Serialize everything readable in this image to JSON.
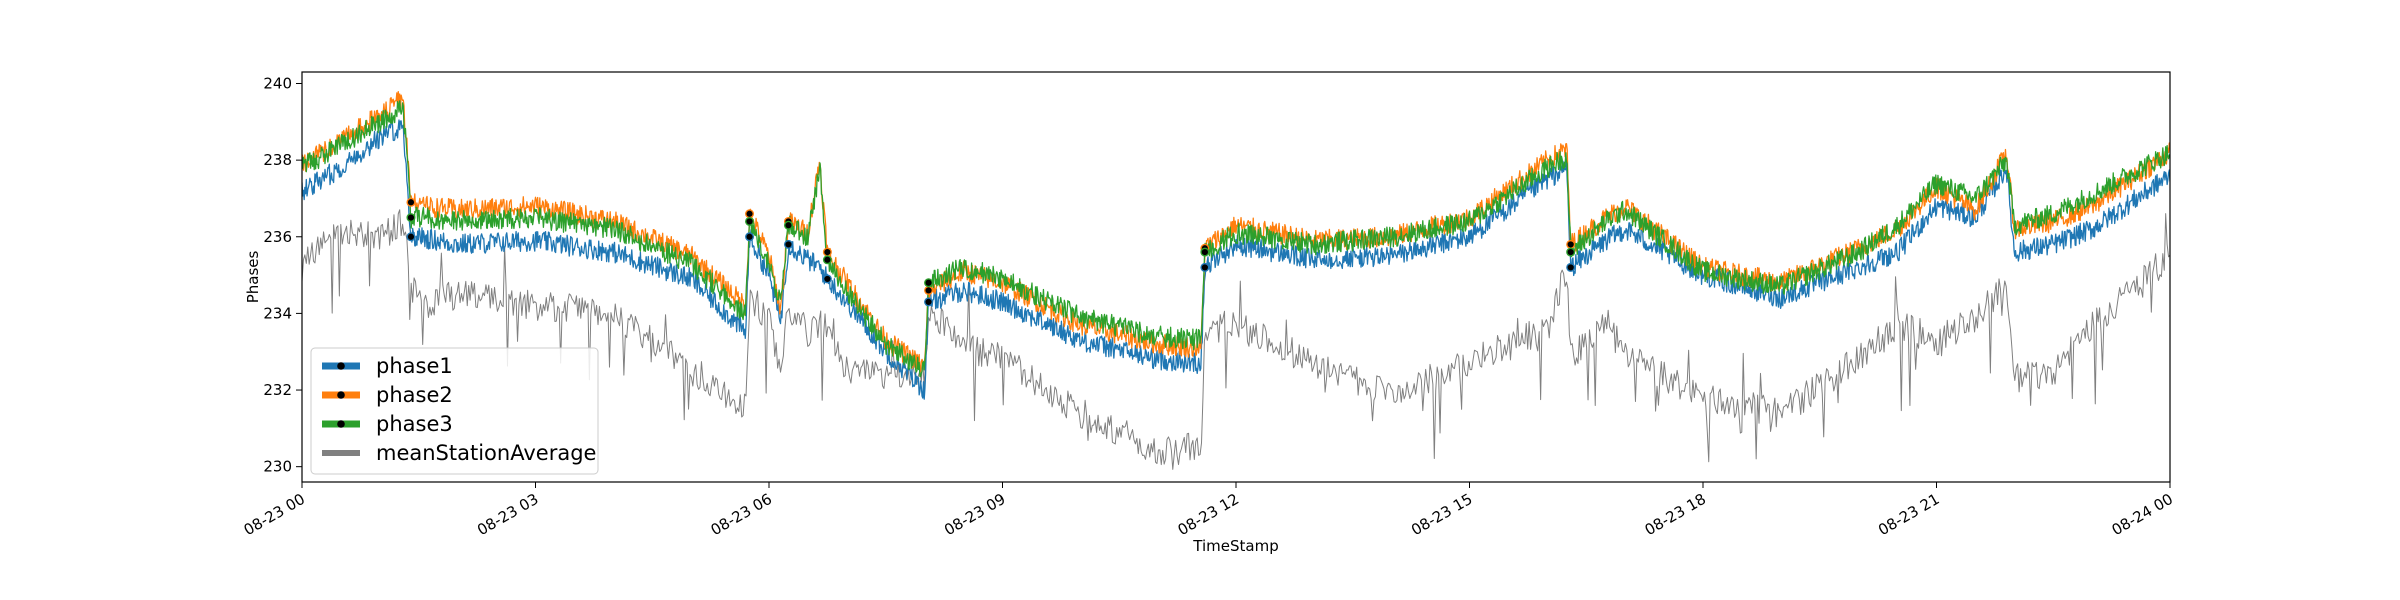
{
  "chart_data": {
    "type": "line",
    "title": "",
    "xlabel": "TimeStamp",
    "ylabel": "Phases",
    "x_range": [
      "2023-08-23 00:00",
      "2023-08-24 00:00"
    ],
    "ylim": [
      229.6,
      240.3
    ],
    "x_tick_labels": [
      "08-23 00",
      "08-23 03",
      "08-23 06",
      "08-23 09",
      "08-23 12",
      "08-23 15",
      "08-23 18",
      "08-23 21",
      "08-24 00"
    ],
    "y_tick_labels": [
      "230",
      "232",
      "234",
      "236",
      "238",
      "240"
    ],
    "y_ticks": [
      230,
      232,
      234,
      236,
      238,
      240
    ],
    "grid": false,
    "legend_position": "lower-left",
    "x_hours": [
      0,
      0.5,
      1.0,
      1.3,
      1.4,
      1.5,
      2,
      3,
      4,
      5,
      5.7,
      5.75,
      6.0,
      6.15,
      6.25,
      6.5,
      6.65,
      6.75,
      7.0,
      7.5,
      8.0,
      8.05,
      8.5,
      9,
      10,
      11,
      11.55,
      11.6,
      12,
      13,
      14,
      15,
      16,
      16.25,
      16.3,
      16.75,
      17.0,
      18,
      19,
      20,
      20.5,
      21,
      21.5,
      21.9,
      22.0,
      22.5,
      23,
      24
    ],
    "series": [
      {
        "name": "phase1",
        "color": "#1f77b4",
        "marker_hours": [
          1.4,
          5.75,
          6.25,
          6.75,
          8.05,
          11.6,
          16.3
        ],
        "values": [
          237.2,
          237.8,
          238.6,
          238.9,
          236.0,
          236.0,
          235.8,
          235.9,
          235.6,
          234.9,
          233.5,
          236.0,
          235.0,
          233.8,
          235.8,
          235.4,
          235.2,
          234.9,
          234.3,
          233.0,
          232.0,
          234.3,
          234.6,
          234.3,
          233.3,
          232.8,
          232.7,
          235.2,
          235.8,
          235.4,
          235.5,
          236.0,
          237.5,
          237.8,
          235.2,
          235.9,
          236.2,
          235.0,
          234.4,
          235.2,
          235.6,
          236.8,
          236.5,
          237.8,
          235.6,
          235.8,
          236.2,
          237.6
        ]
      },
      {
        "name": "phase2",
        "color": "#ff7f0e",
        "marker_hours": [
          1.4,
          5.75,
          6.25,
          6.75,
          8.05,
          11.6,
          16.3
        ],
        "values": [
          237.9,
          238.5,
          239.2,
          239.6,
          236.9,
          236.8,
          236.7,
          236.8,
          236.4,
          235.5,
          234.2,
          236.6,
          235.5,
          234.1,
          236.4,
          236.1,
          238.0,
          235.6,
          234.8,
          233.3,
          232.6,
          234.6,
          235.1,
          234.8,
          233.7,
          233.2,
          233.1,
          235.7,
          236.3,
          235.9,
          236.0,
          236.5,
          238.0,
          238.3,
          235.8,
          236.5,
          236.8,
          235.2,
          234.8,
          235.7,
          236.2,
          237.3,
          236.7,
          238.2,
          236.2,
          236.4,
          236.8,
          238.2
        ]
      },
      {
        "name": "phase3",
        "color": "#2ca02c",
        "marker_hours": [
          1.4,
          5.75,
          6.25,
          6.75,
          8.05,
          11.6,
          16.3
        ],
        "values": [
          237.8,
          238.4,
          239.0,
          239.4,
          236.5,
          236.5,
          236.4,
          236.5,
          236.2,
          235.3,
          234.0,
          236.4,
          235.3,
          234.2,
          236.3,
          236.0,
          237.8,
          235.4,
          234.6,
          233.2,
          232.5,
          234.8,
          235.2,
          234.9,
          233.9,
          233.4,
          233.3,
          235.6,
          236.1,
          235.8,
          236.0,
          236.4,
          237.8,
          238.1,
          235.6,
          236.4,
          236.7,
          235.1,
          234.7,
          235.6,
          236.3,
          237.4,
          237.0,
          238.0,
          236.3,
          236.6,
          237.1,
          238.2
        ]
      },
      {
        "name": "meanStationAverage",
        "color": "#808080",
        "values": [
          235.2,
          236.2,
          236.0,
          236.4,
          234.8,
          234.2,
          234.5,
          234.2,
          234.0,
          232.5,
          231.6,
          234.5,
          233.8,
          232.4,
          234.2,
          233.5,
          233.8,
          233.6,
          232.5,
          232.3,
          232.4,
          234.2,
          233.1,
          232.8,
          231.4,
          230.4,
          230.5,
          233.6,
          233.7,
          232.7,
          231.9,
          232.7,
          233.6,
          235.2,
          232.8,
          233.8,
          232.9,
          231.8,
          231.4,
          232.8,
          233.7,
          233.3,
          233.9,
          234.8,
          232.3,
          232.5,
          233.7,
          235.5
        ]
      }
    ]
  }
}
